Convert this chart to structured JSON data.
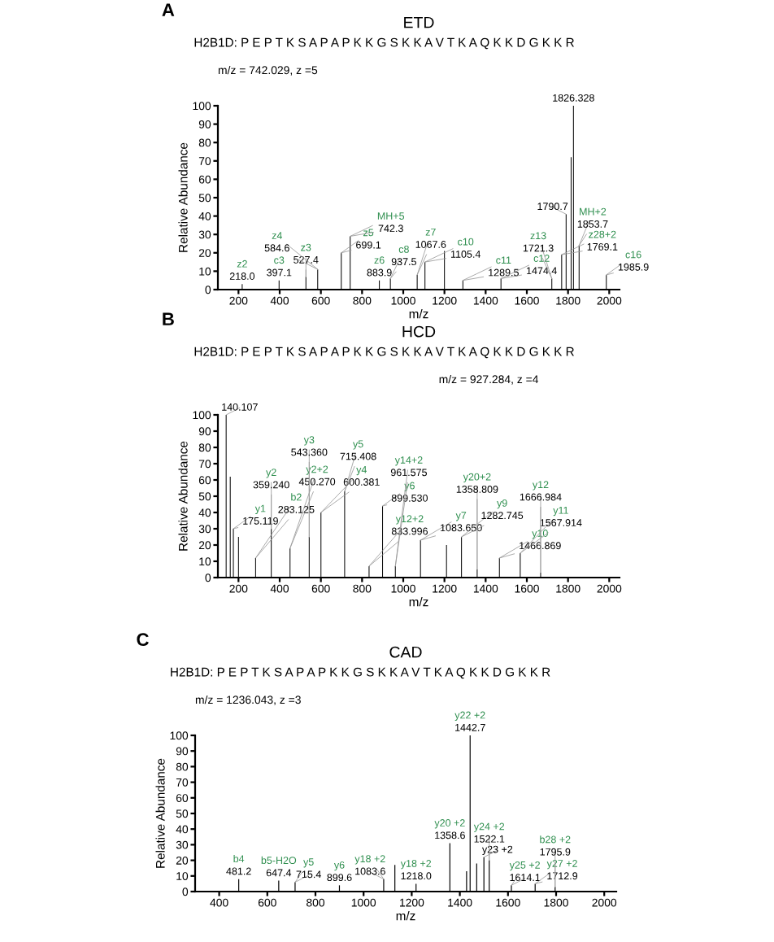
{
  "chart_data": [
    {
      "type": "bar",
      "title": "ETD",
      "xlabel": "m/z",
      "ylabel": "Relative Abundance",
      "color": "#000000",
      "x": [
        218.0,
        397.1,
        527.4,
        584.6,
        699.1,
        742.3,
        883.9,
        937.5,
        1067.6,
        1105.4,
        1200,
        1289.5,
        1474.4,
        1721.3,
        1769.1,
        1790.7,
        1815,
        1826.328,
        1853.7,
        1985.9
      ],
      "values": [
        3,
        5,
        7,
        11,
        20,
        29,
        5,
        6,
        8,
        15,
        21,
        5,
        6,
        6,
        19,
        41,
        72,
        100,
        24,
        8
      ],
      "annotations": [
        "A",
        "H2B1D: P E P T K S A P A P K K G S K K A V T K A Q K K D G K K R",
        "m/z = 742.029, z =5",
        {
          "text": "z2",
          "x": 218.0,
          "y": 3
        },
        {
          "text": "218.0",
          "x": 218.0,
          "y": 3
        },
        {
          "text": "c3",
          "x": 397.1,
          "y": 5
        },
        {
          "text": "397.1",
          "x": 397.1,
          "y": 5
        },
        {
          "text": "z3",
          "x": 527.4,
          "y": 7
        },
        {
          "text": "527.4",
          "x": 527.4,
          "y": 7
        },
        {
          "text": "z4",
          "x": 584.6,
          "y": 11
        },
        {
          "text": "584.6",
          "x": 584.6,
          "y": 11
        },
        {
          "text": "z5",
          "x": 699.1,
          "y": 20
        },
        {
          "text": "699.1",
          "x": 699.1,
          "y": 20
        },
        {
          "text": "MH+5",
          "x": 742.3,
          "y": 29
        },
        {
          "text": "742.3",
          "x": 742.3,
          "y": 29
        },
        {
          "text": "z6",
          "x": 883.9,
          "y": 5
        },
        {
          "text": "883.9",
          "x": 883.9,
          "y": 5
        },
        {
          "text": "c8",
          "x": 937.5,
          "y": 6
        },
        {
          "text": "937.5",
          "x": 937.5,
          "y": 6
        },
        {
          "text": "z7",
          "x": 1067.6,
          "y": 8
        },
        {
          "text": "1067.6",
          "x": 1067.6,
          "y": 8
        },
        {
          "text": "c10",
          "x": 1105.4,
          "y": 15
        },
        {
          "text": "1105.4",
          "x": 1105.4,
          "y": 15
        },
        {
          "text": "c11",
          "x": 1289.5,
          "y": 5
        },
        {
          "text": "1289.5",
          "x": 1289.5,
          "y": 5
        },
        {
          "text": "c12",
          "x": 1474.4,
          "y": 6
        },
        {
          "text": "1474.4",
          "x": 1474.4,
          "y": 6
        },
        {
          "text": "z13",
          "x": 1721.3,
          "y": 6
        },
        {
          "text": "1721.3",
          "x": 1721.3,
          "y": 6
        },
        {
          "text": "z28+2",
          "x": 1769.1,
          "y": 19
        },
        {
          "text": "1769.1",
          "x": 1769.1,
          "y": 19
        },
        {
          "text": "1790.7",
          "x": 1790.7,
          "y": 41
        },
        {
          "text": "1826.328",
          "x": 1826.328,
          "y": 100
        },
        {
          "text": "MH+2",
          "x": 1853.7,
          "y": 24
        },
        {
          "text": "1853.7",
          "x": 1853.7,
          "y": 24
        },
        {
          "text": "c16",
          "x": 1985.9,
          "y": 8
        },
        {
          "text": "1985.9",
          "x": 1985.9,
          "y": 8
        }
      ],
      "xlim": [
        100,
        2050
      ],
      "xticks": [
        200,
        400,
        600,
        800,
        1000,
        1200,
        1400,
        1600,
        1800,
        2000
      ],
      "ylim": [
        0,
        100
      ],
      "yticks": [
        0,
        10,
        20,
        30,
        40,
        50,
        60,
        70,
        80,
        90,
        100
      ],
      "grid": false
    },
    {
      "type": "bar",
      "title": "HCD",
      "xlabel": "m/z",
      "ylabel": "Relative Abundance",
      "color": "#000000",
      "x": [
        140.107,
        160,
        175.119,
        200,
        283.125,
        359.24,
        450.27,
        543.36,
        600.381,
        715.408,
        833.996,
        899.53,
        961.575,
        1083.65,
        1210,
        1282.745,
        1358.809,
        1466.869,
        1567.914,
        1666.984
      ],
      "values": [
        100,
        62,
        30,
        25,
        12,
        30,
        18,
        25,
        40,
        53,
        7,
        44,
        7,
        23,
        20,
        25,
        5,
        12,
        15,
        3
      ],
      "annotations": [
        "B",
        "H2B1D: P E P T K S A P A P K K G S K K A V T K A Q K K D G K K R",
        "m/z = 927.284, z =4",
        {
          "text": "140.107",
          "x": 140.107,
          "y": 100
        },
        {
          "text": "y1",
          "x": 175.119,
          "y": 30
        },
        {
          "text": "175.119",
          "x": 175.119,
          "y": 30
        },
        {
          "text": "b2",
          "x": 283.125,
          "y": 12
        },
        {
          "text": "283.125",
          "x": 283.125,
          "y": 12
        },
        {
          "text": "y2",
          "x": 359.24,
          "y": 30
        },
        {
          "text": "359.240",
          "x": 359.24,
          "y": 30
        },
        {
          "text": "y2+2",
          "x": 450.27,
          "y": 18
        },
        {
          "text": "450.270",
          "x": 450.27,
          "y": 18
        },
        {
          "text": "y3",
          "x": 543.36,
          "y": 25
        },
        {
          "text": "543.360",
          "x": 543.36,
          "y": 25
        },
        {
          "text": "y4",
          "x": 600.381,
          "y": 40
        },
        {
          "text": "600.381",
          "x": 600.381,
          "y": 40
        },
        {
          "text": "y5",
          "x": 715.408,
          "y": 53
        },
        {
          "text": "715.408",
          "x": 715.408,
          "y": 53
        },
        {
          "text": "y12+2",
          "x": 833.996,
          "y": 7
        },
        {
          "text": "833.996",
          "x": 833.996,
          "y": 7
        },
        {
          "text": "y6",
          "x": 899.53,
          "y": 44
        },
        {
          "text": "899.530",
          "x": 899.53,
          "y": 44
        },
        {
          "text": "y14+2",
          "x": 961.575,
          "y": 7
        },
        {
          "text": "961.575",
          "x": 961.575,
          "y": 7
        },
        {
          "text": "y7",
          "x": 1083.65,
          "y": 23
        },
        {
          "text": "1083.650",
          "x": 1083.65,
          "y": 23
        },
        {
          "text": "y9",
          "x": 1282.745,
          "y": 25
        },
        {
          "text": "1282.745",
          "x": 1282.745,
          "y": 25
        },
        {
          "text": "y20+2",
          "x": 1358.809,
          "y": 5
        },
        {
          "text": "1358.809",
          "x": 1358.809,
          "y": 5
        },
        {
          "text": "y10",
          "x": 1466.869,
          "y": 12
        },
        {
          "text": "1466.869",
          "x": 1466.869,
          "y": 12
        },
        {
          "text": "y11",
          "x": 1567.914,
          "y": 15
        },
        {
          "text": "1567.914",
          "x": 1567.914,
          "y": 15
        },
        {
          "text": "y12",
          "x": 1666.984,
          "y": 3
        },
        {
          "text": "1666.984",
          "x": 1666.984,
          "y": 3
        }
      ],
      "xlim": [
        100,
        2050
      ],
      "xticks": [
        200,
        400,
        600,
        800,
        1000,
        1200,
        1400,
        1600,
        1800,
        2000
      ],
      "ylim": [
        0,
        100
      ],
      "yticks": [
        0,
        10,
        20,
        30,
        40,
        50,
        60,
        70,
        80,
        90,
        100
      ],
      "grid": false
    },
    {
      "type": "bar",
      "title": "CAD",
      "xlabel": "m/z",
      "ylabel": "Relative Abundance",
      "color": "#000000",
      "x": [
        481.2,
        647.4,
        715.4,
        899.6,
        1083.6,
        1130,
        1218.0,
        1358.6,
        1428,
        1442.7,
        1470,
        1500,
        1522.1,
        1614.1,
        1712.9,
        1795.9
      ],
      "values": [
        8,
        7,
        6,
        4,
        8,
        17,
        5,
        31,
        13,
        100,
        18,
        22,
        20,
        4,
        5,
        3
      ],
      "annotations": [
        "C",
        "H2B1D: P E P T K S A P A P K K G S K K A V T K A Q K K D G K K R",
        "m/z = 1236.043, z =3",
        {
          "text": "b4",
          "x": 481.2,
          "y": 8
        },
        {
          "text": "481.2",
          "x": 481.2,
          "y": 8
        },
        {
          "text": "b5-H2O",
          "x": 647.4,
          "y": 7
        },
        {
          "text": "647.4",
          "x": 647.4,
          "y": 7
        },
        {
          "text": "y5",
          "x": 715.4,
          "y": 6
        },
        {
          "text": "715.4",
          "x": 715.4,
          "y": 6
        },
        {
          "text": "y6",
          "x": 899.6,
          "y": 4
        },
        {
          "text": "899.6",
          "x": 899.6,
          "y": 4
        },
        {
          "text": "y18 +2",
          "x": 1083.6,
          "y": 8
        },
        {
          "text": "1083.6",
          "x": 1083.6,
          "y": 8
        },
        {
          "text": "y18 +2",
          "x": 1218.0,
          "y": 5
        },
        {
          "text": "1218.0",
          "x": 1218.0,
          "y": 5
        },
        {
          "text": "y20 +2",
          "x": 1358.6,
          "y": 31
        },
        {
          "text": "1358.6",
          "x": 1358.6,
          "y": 31
        },
        {
          "text": "y22 +2",
          "x": 1442.7,
          "y": 100
        },
        {
          "text": "1442.7",
          "x": 1442.7,
          "y": 100
        },
        {
          "text": "y23 +2",
          "x": 1500,
          "y": 22
        },
        {
          "text": "y24 +2",
          "x": 1522.1,
          "y": 20
        },
        {
          "text": "1522.1",
          "x": 1522.1,
          "y": 20
        },
        {
          "text": "y25 +2",
          "x": 1614.1,
          "y": 4
        },
        {
          "text": "1614.1",
          "x": 1614.1,
          "y": 4
        },
        {
          "text": "y27 +2",
          "x": 1712.9,
          "y": 5
        },
        {
          "text": "1712.9",
          "x": 1712.9,
          "y": 5
        },
        {
          "text": "b28 +2",
          "x": 1795.9,
          "y": 3
        },
        {
          "text": "1795.9",
          "x": 1795.9,
          "y": 3
        }
      ],
      "xlim": [
        300,
        2050
      ],
      "xticks": [
        400,
        600,
        800,
        1000,
        1200,
        1400,
        1600,
        1800,
        2000
      ],
      "ylim": [
        0,
        100
      ],
      "yticks": [
        0,
        10,
        20,
        30,
        40,
        50,
        60,
        70,
        80,
        90,
        100
      ],
      "grid": false
    }
  ]
}
